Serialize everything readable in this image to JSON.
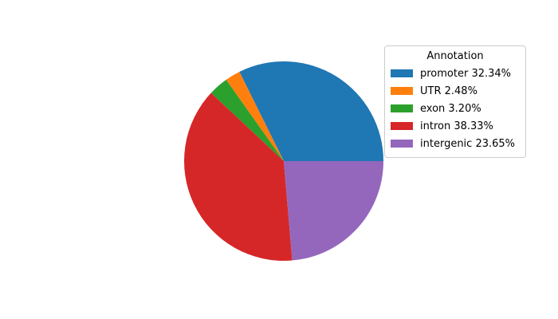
{
  "chart_data": {
    "type": "pie",
    "legend_title": "Annotation",
    "categories": [
      "promoter",
      "UTR",
      "exon",
      "intron",
      "intergenic"
    ],
    "values": [
      32.34,
      2.48,
      3.2,
      38.33,
      23.65
    ],
    "colors": [
      "#1f77b4",
      "#ff7f0e",
      "#2ca02c",
      "#d62728",
      "#9467bd"
    ],
    "legend_labels": [
      "promoter 32.34%",
      "UTR 2.48%",
      "exon 3.20%",
      "intron 38.33%",
      "intergenic 23.65%"
    ],
    "start_angle_deg": 0,
    "direction": "counterclockwise",
    "legend_position": "upper right",
    "legend_border_color": "#cccccc",
    "background_color": "#ffffff"
  }
}
